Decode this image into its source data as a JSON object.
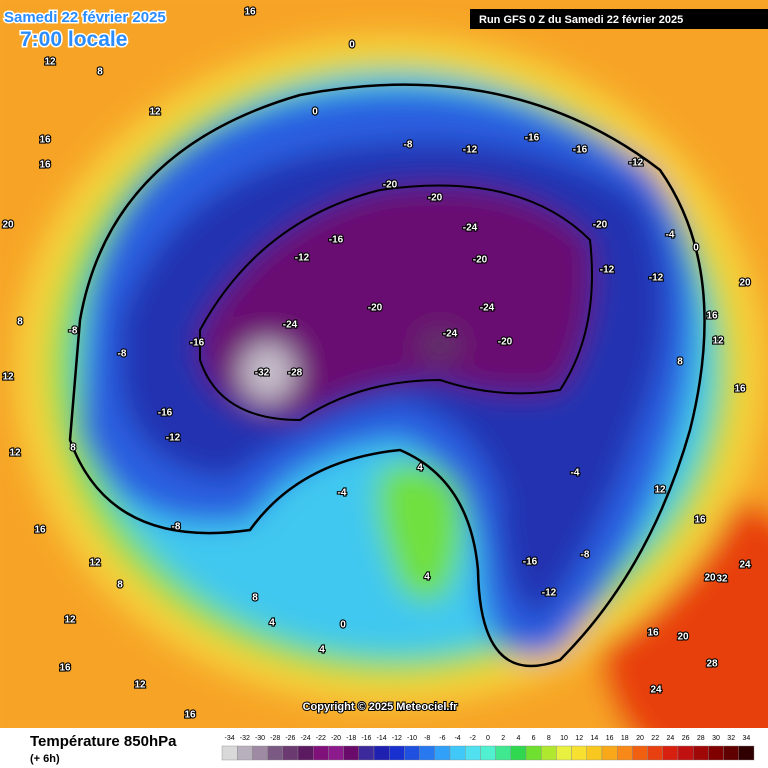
{
  "header": {
    "date": "Samedi 22 février 2025",
    "time": "7:00 locale",
    "run": "Run GFS 0 Z du Samedi 22 février 2025"
  },
  "copyright": "Copyright © 2025 Meteociel.fr",
  "legend": {
    "title": "Température 850hPa",
    "subtitle": "(+ 6h)",
    "ticks": [
      -34,
      -32,
      -30,
      -28,
      -26,
      -24,
      -22,
      -20,
      -18,
      -16,
      -14,
      -12,
      -10,
      -8,
      -6,
      -4,
      -2,
      0,
      2,
      4,
      6,
      8,
      10,
      12,
      14,
      16,
      18,
      20,
      22,
      24,
      26,
      28,
      30,
      32,
      34
    ],
    "colors": [
      "#d9d9d9",
      "#b8b0bc",
      "#9f8aa3",
      "#7a5a82",
      "#6a3a70",
      "#5c1a60",
      "#80107a",
      "#8c1a8c",
      "#6a0a6a",
      "#3c2a9c",
      "#2020b0",
      "#1830d0",
      "#2050e0",
      "#2878f0",
      "#30a0f8",
      "#40c8f8",
      "#50e0f0",
      "#50f0d0",
      "#40e890",
      "#30d850",
      "#70e030",
      "#b0e830",
      "#e8f040",
      "#f8e030",
      "#f8c820",
      "#f8a818",
      "#f88818",
      "#f06010",
      "#e84010",
      "#d82010",
      "#c01010",
      "#a00808",
      "#800000",
      "#600000",
      "#300000"
    ]
  },
  "map_labels": [
    16,
    12,
    16,
    16,
    8,
    12,
    20,
    8,
    12,
    12,
    16,
    12,
    8,
    12,
    16,
    12,
    16,
    0,
    0,
    -8,
    -12,
    -16,
    -16,
    -12,
    -20,
    -20,
    -24,
    -20,
    -24,
    -20,
    -24,
    -20,
    -24,
    -32,
    -28,
    -16,
    -12,
    -16,
    -16,
    -12,
    -8,
    -8,
    -4,
    4,
    4,
    0,
    -16,
    -12,
    -8,
    -4,
    -20,
    -12,
    -12,
    -4,
    0,
    20,
    16,
    12,
    8,
    16,
    12,
    16,
    20,
    24,
    28,
    24,
    32,
    20,
    16,
    4,
    4,
    8,
    -8,
    8
  ]
}
